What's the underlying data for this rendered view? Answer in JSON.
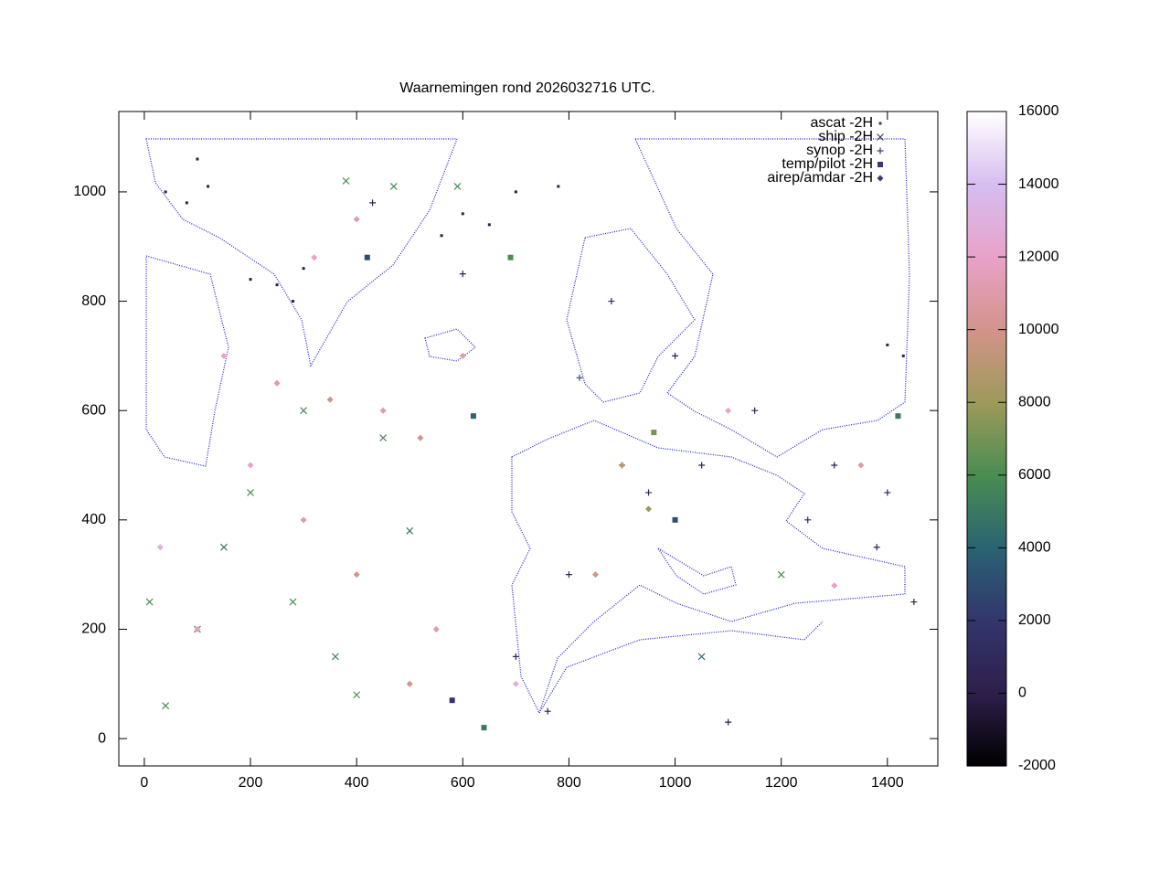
{
  "chart_data": {
    "type": "scatter",
    "title": "Waarnemingen rond 2026032716 UTC.",
    "xlim": [
      -48,
      1495
    ],
    "ylim": [
      -50,
      1147
    ],
    "xticks": [
      0,
      200,
      400,
      600,
      800,
      1000,
      1200,
      1400
    ],
    "yticks": [
      0,
      200,
      400,
      600,
      800,
      1000
    ],
    "cblim": [
      -2000,
      16000
    ],
    "cbticks": [
      -2000,
      0,
      2000,
      4000,
      6000,
      8000,
      10000,
      12000,
      14000,
      16000
    ],
    "palette": [
      "#000000",
      "#2e1f4a",
      "#33356c",
      "#2a6372",
      "#4a8c52",
      "#9c9a5a",
      "#d3938a",
      "#e8a2c8",
      "#d6bdf0",
      "#ffffff"
    ],
    "legend": "top-right",
    "series": [
      {
        "name": "ascat -2H",
        "marker": "dot",
        "x": [
          40,
          80,
          120,
          200,
          250,
          300,
          600,
          700,
          780,
          1400,
          1430,
          100,
          650,
          560,
          280
        ],
        "values": [
          1000,
          980,
          1010,
          840,
          830,
          860,
          960,
          1000,
          1010,
          720,
          700,
          1060,
          940,
          920,
          800
        ],
        "z": [
          0,
          0,
          0,
          0,
          0,
          0,
          0,
          0,
          0,
          0,
          0,
          0,
          0,
          0,
          0
        ]
      },
      {
        "name": "ship -2H",
        "marker": "cross",
        "x": [
          10,
          40,
          100,
          150,
          200,
          280,
          360,
          400,
          450,
          300,
          500,
          470,
          380,
          590,
          1050,
          1200
        ],
        "values": [
          250,
          60,
          200,
          350,
          450,
          250,
          150,
          80,
          550,
          600,
          380,
          1010,
          1020,
          1010,
          150,
          300
        ],
        "z": [
          6000,
          6000,
          6000,
          5000,
          6000,
          6000,
          5000,
          6000,
          6000,
          6000,
          5000,
          6000,
          6000,
          6000,
          4000,
          6000
        ]
      },
      {
        "name": "synop -2H",
        "marker": "plus",
        "x": [
          900,
          950,
          1050,
          800,
          700,
          760,
          1300,
          1400,
          1150,
          1380,
          1100,
          820,
          880,
          1000,
          430,
          1450,
          1250,
          600
        ],
        "values": [
          500,
          450,
          500,
          300,
          150,
          50,
          500,
          450,
          600,
          350,
          30,
          660,
          800,
          700,
          980,
          250,
          400,
          850
        ],
        "z": [
          1000,
          500,
          200,
          800,
          300,
          200,
          300,
          0,
          100,
          200,
          0,
          3000,
          800,
          400,
          200,
          0,
          200,
          400
        ]
      },
      {
        "name": "temp/pilot -2H",
        "marker": "square",
        "x": [
          690,
          960,
          1420,
          620,
          1000,
          580,
          640,
          420
        ],
        "values": [
          880,
          560,
          590,
          590,
          400,
          70,
          20,
          880
        ],
        "z": [
          6000,
          7000,
          5000,
          4000,
          3000,
          2000,
          5000,
          3000
        ]
      },
      {
        "name": "airep/amdar -2H",
        "marker": "diamond",
        "x": [
          150,
          250,
          350,
          450,
          520,
          200,
          300,
          400,
          100,
          550,
          500,
          900,
          950,
          850,
          1300,
          1350,
          400,
          320,
          700,
          1100,
          30,
          600
        ],
        "values": [
          700,
          650,
          620,
          600,
          550,
          500,
          400,
          300,
          200,
          200,
          100,
          500,
          420,
          300,
          280,
          500,
          950,
          880,
          100,
          600,
          350,
          700
        ],
        "z": [
          12000,
          11000,
          10000,
          11000,
          10000,
          12000,
          11000,
          10000,
          12000,
          11000,
          10000,
          9000,
          8000,
          10000,
          12000,
          11000,
          11000,
          12000,
          13000,
          12000,
          13000,
          11000
        ]
      }
    ]
  }
}
